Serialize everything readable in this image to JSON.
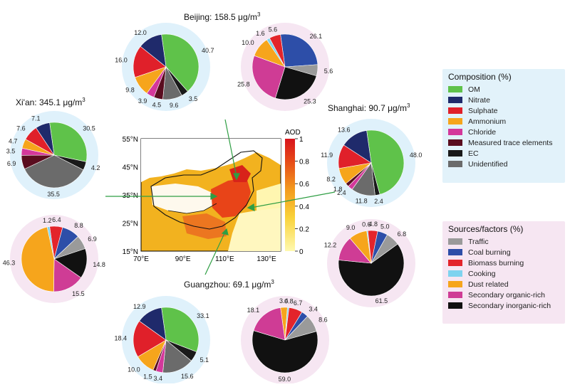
{
  "colors": {
    "OM": "#5fc24a",
    "Nitrate": "#1f2a6b",
    "Sulphate": "#e0202a",
    "Ammonium": "#f6a51c",
    "Chloride": "#d4389b",
    "MeasuredTrace": "#5a0d1f",
    "EC": "#1a1a1a",
    "Unidentified": "#6b6b6b",
    "Traffic": "#9a9a9a",
    "Coal": "#2d4ea8",
    "Biomass": "#e3242b",
    "Cooking": "#7ed3ef",
    "Dust": "#f6a51c",
    "SecOrg": "#cf3c95",
    "SecInorg": "#111111",
    "bg_comp": "#dff1fb",
    "bg_src": "#f6e6f2",
    "legend_bg": "#e2f2fa"
  },
  "legend_comp": {
    "title": "Composition (%)",
    "items": [
      {
        "label": "OM",
        "color": "#5fc24a"
      },
      {
        "label": "Nitrate",
        "color": "#1f2a6b"
      },
      {
        "label": "Sulphate",
        "color": "#e0202a"
      },
      {
        "label": "Ammonium",
        "color": "#f6a51c"
      },
      {
        "label": "Chloride",
        "color": "#d4389b"
      },
      {
        "label": "Measured trace elements",
        "color": "#5a0d1f"
      },
      {
        "label": "EC",
        "color": "#1a1a1a"
      },
      {
        "label": "Unidentified",
        "color": "#6b6b6b"
      }
    ]
  },
  "legend_src": {
    "title": "Sources/factors (%)",
    "items": [
      {
        "label": "Traffic",
        "color": "#9a9a9a"
      },
      {
        "label": "Coal burning",
        "color": "#2d4ea8"
      },
      {
        "label": "Biomass burning",
        "color": "#e3242b"
      },
      {
        "label": "Cooking",
        "color": "#7ed3ef"
      },
      {
        "label": "Dust related",
        "color": "#f6a51c"
      },
      {
        "label": "Secondary organic-rich",
        "color": "#cf3c95"
      },
      {
        "label": "Secondary inorganic-rich",
        "color": "#111111"
      }
    ]
  },
  "city_titles": {
    "beijing": "Beijing: 158.5 μg/m",
    "xian": "Xi'an: 345.1 μg/m",
    "shanghai": "Shanghai: 90.7 μg/m",
    "guangzhou": "Guangzhou: 69.1 μg/m",
    "unit_exp": "3"
  },
  "map": {
    "colorbar_title": "AOD",
    "colorbar_ticks": [
      "1",
      "0.8",
      "0.6",
      "0.4",
      "0.2",
      "0"
    ],
    "lat_ticks": [
      "55°N",
      "45°N",
      "35°N",
      "25°N",
      "15°N"
    ],
    "lon_ticks": [
      "70°E",
      "90°E",
      "110°E",
      "130°E"
    ]
  },
  "chart_data": [
    {
      "type": "pie",
      "city": "Beijing",
      "kind": "composition",
      "slices": [
        {
          "k": "OM",
          "v": 40.7
        },
        {
          "k": "EC",
          "v": 3.5
        },
        {
          "k": "Unidentified",
          "v": 9.6
        },
        {
          "k": "MeasuredTrace",
          "v": 4.5
        },
        {
          "k": "Chloride",
          "v": 3.9
        },
        {
          "k": "Ammonium",
          "v": 9.8
        },
        {
          "k": "Sulphate",
          "v": 16.0
        },
        {
          "k": "Nitrate",
          "v": 12.0
        }
      ]
    },
    {
      "type": "pie",
      "city": "Beijing",
      "kind": "sources",
      "slices": [
        {
          "k": "Coal",
          "v": 26.1
        },
        {
          "k": "Traffic",
          "v": 5.6
        },
        {
          "k": "SecInorg",
          "v": 25.3
        },
        {
          "k": "SecOrg",
          "v": 25.8
        },
        {
          "k": "Dust",
          "v": 10.0
        },
        {
          "k": "Cooking",
          "v": 1.6
        },
        {
          "k": "Biomass",
          "v": 5.6
        }
      ]
    },
    {
      "type": "pie",
      "city": "Xi'an",
      "kind": "composition",
      "slices": [
        {
          "k": "OM",
          "v": 30.5
        },
        {
          "k": "EC",
          "v": 4.2
        },
        {
          "k": "Unidentified",
          "v": 35.5
        },
        {
          "k": "MeasuredTrace",
          "v": 6.9
        },
        {
          "k": "Chloride",
          "v": 3.5
        },
        {
          "k": "Ammonium",
          "v": 4.7
        },
        {
          "k": "Sulphate",
          "v": 7.6
        },
        {
          "k": "Nitrate",
          "v": 7.1
        }
      ]
    },
    {
      "type": "pie",
      "city": "Xi'an",
      "kind": "sources",
      "slices": [
        {
          "k": "Biomass",
          "v": 6.4
        },
        {
          "k": "Coal",
          "v": 8.8
        },
        {
          "k": "Traffic",
          "v": 6.9
        },
        {
          "k": "SecInorg",
          "v": 14.8
        },
        {
          "k": "SecOrg",
          "v": 15.5
        },
        {
          "k": "Dust",
          "v": 46.3
        },
        {
          "k": "Cooking",
          "v": 1.2
        }
      ]
    },
    {
      "type": "pie",
      "city": "Shanghai",
      "kind": "composition",
      "slices": [
        {
          "k": "OM",
          "v": 48.0
        },
        {
          "k": "EC",
          "v": 2.4
        },
        {
          "k": "Unidentified",
          "v": 11.8
        },
        {
          "k": "Chloride",
          "v": 2.4
        },
        {
          "k": "MeasuredTrace",
          "v": 1.8
        },
        {
          "k": "Ammonium",
          "v": 8.2
        },
        {
          "k": "Sulphate",
          "v": 11.9
        },
        {
          "k": "Nitrate",
          "v": 13.6
        }
      ]
    },
    {
      "type": "pie",
      "city": "Shanghai",
      "kind": "sources",
      "slices": [
        {
          "k": "Cooking",
          "v": 0.6
        },
        {
          "k": "Biomass",
          "v": 4.8
        },
        {
          "k": "Coal",
          "v": 5.0
        },
        {
          "k": "Traffic",
          "v": 6.8
        },
        {
          "k": "SecInorg",
          "v": 61.5
        },
        {
          "k": "SecOrg",
          "v": 12.2
        },
        {
          "k": "Dust",
          "v": 9.0
        }
      ]
    },
    {
      "type": "pie",
      "city": "Guangzhou",
      "kind": "composition",
      "slices": [
        {
          "k": "OM",
          "v": 33.1
        },
        {
          "k": "EC",
          "v": 5.1
        },
        {
          "k": "Unidentified",
          "v": 15.6
        },
        {
          "k": "Chloride",
          "v": 3.4
        },
        {
          "k": "MeasuredTrace",
          "v": 1.5
        },
        {
          "k": "Ammonium",
          "v": 10.0
        },
        {
          "k": "Sulphate",
          "v": 18.4
        },
        {
          "k": "Nitrate",
          "v": 12.9
        }
      ]
    },
    {
      "type": "pie",
      "city": "Guangzhou",
      "kind": "sources",
      "slices": [
        {
          "k": "Dust",
          "v": 3.4
        },
        {
          "k": "Cooking",
          "v": 0.8
        },
        {
          "k": "Biomass",
          "v": 6.7
        },
        {
          "k": "Coal",
          "v": 3.4
        },
        {
          "k": "Traffic",
          "v": 8.6
        },
        {
          "k": "SecInorg",
          "v": 59.0
        },
        {
          "k": "SecOrg",
          "v": 18.1
        }
      ]
    }
  ]
}
